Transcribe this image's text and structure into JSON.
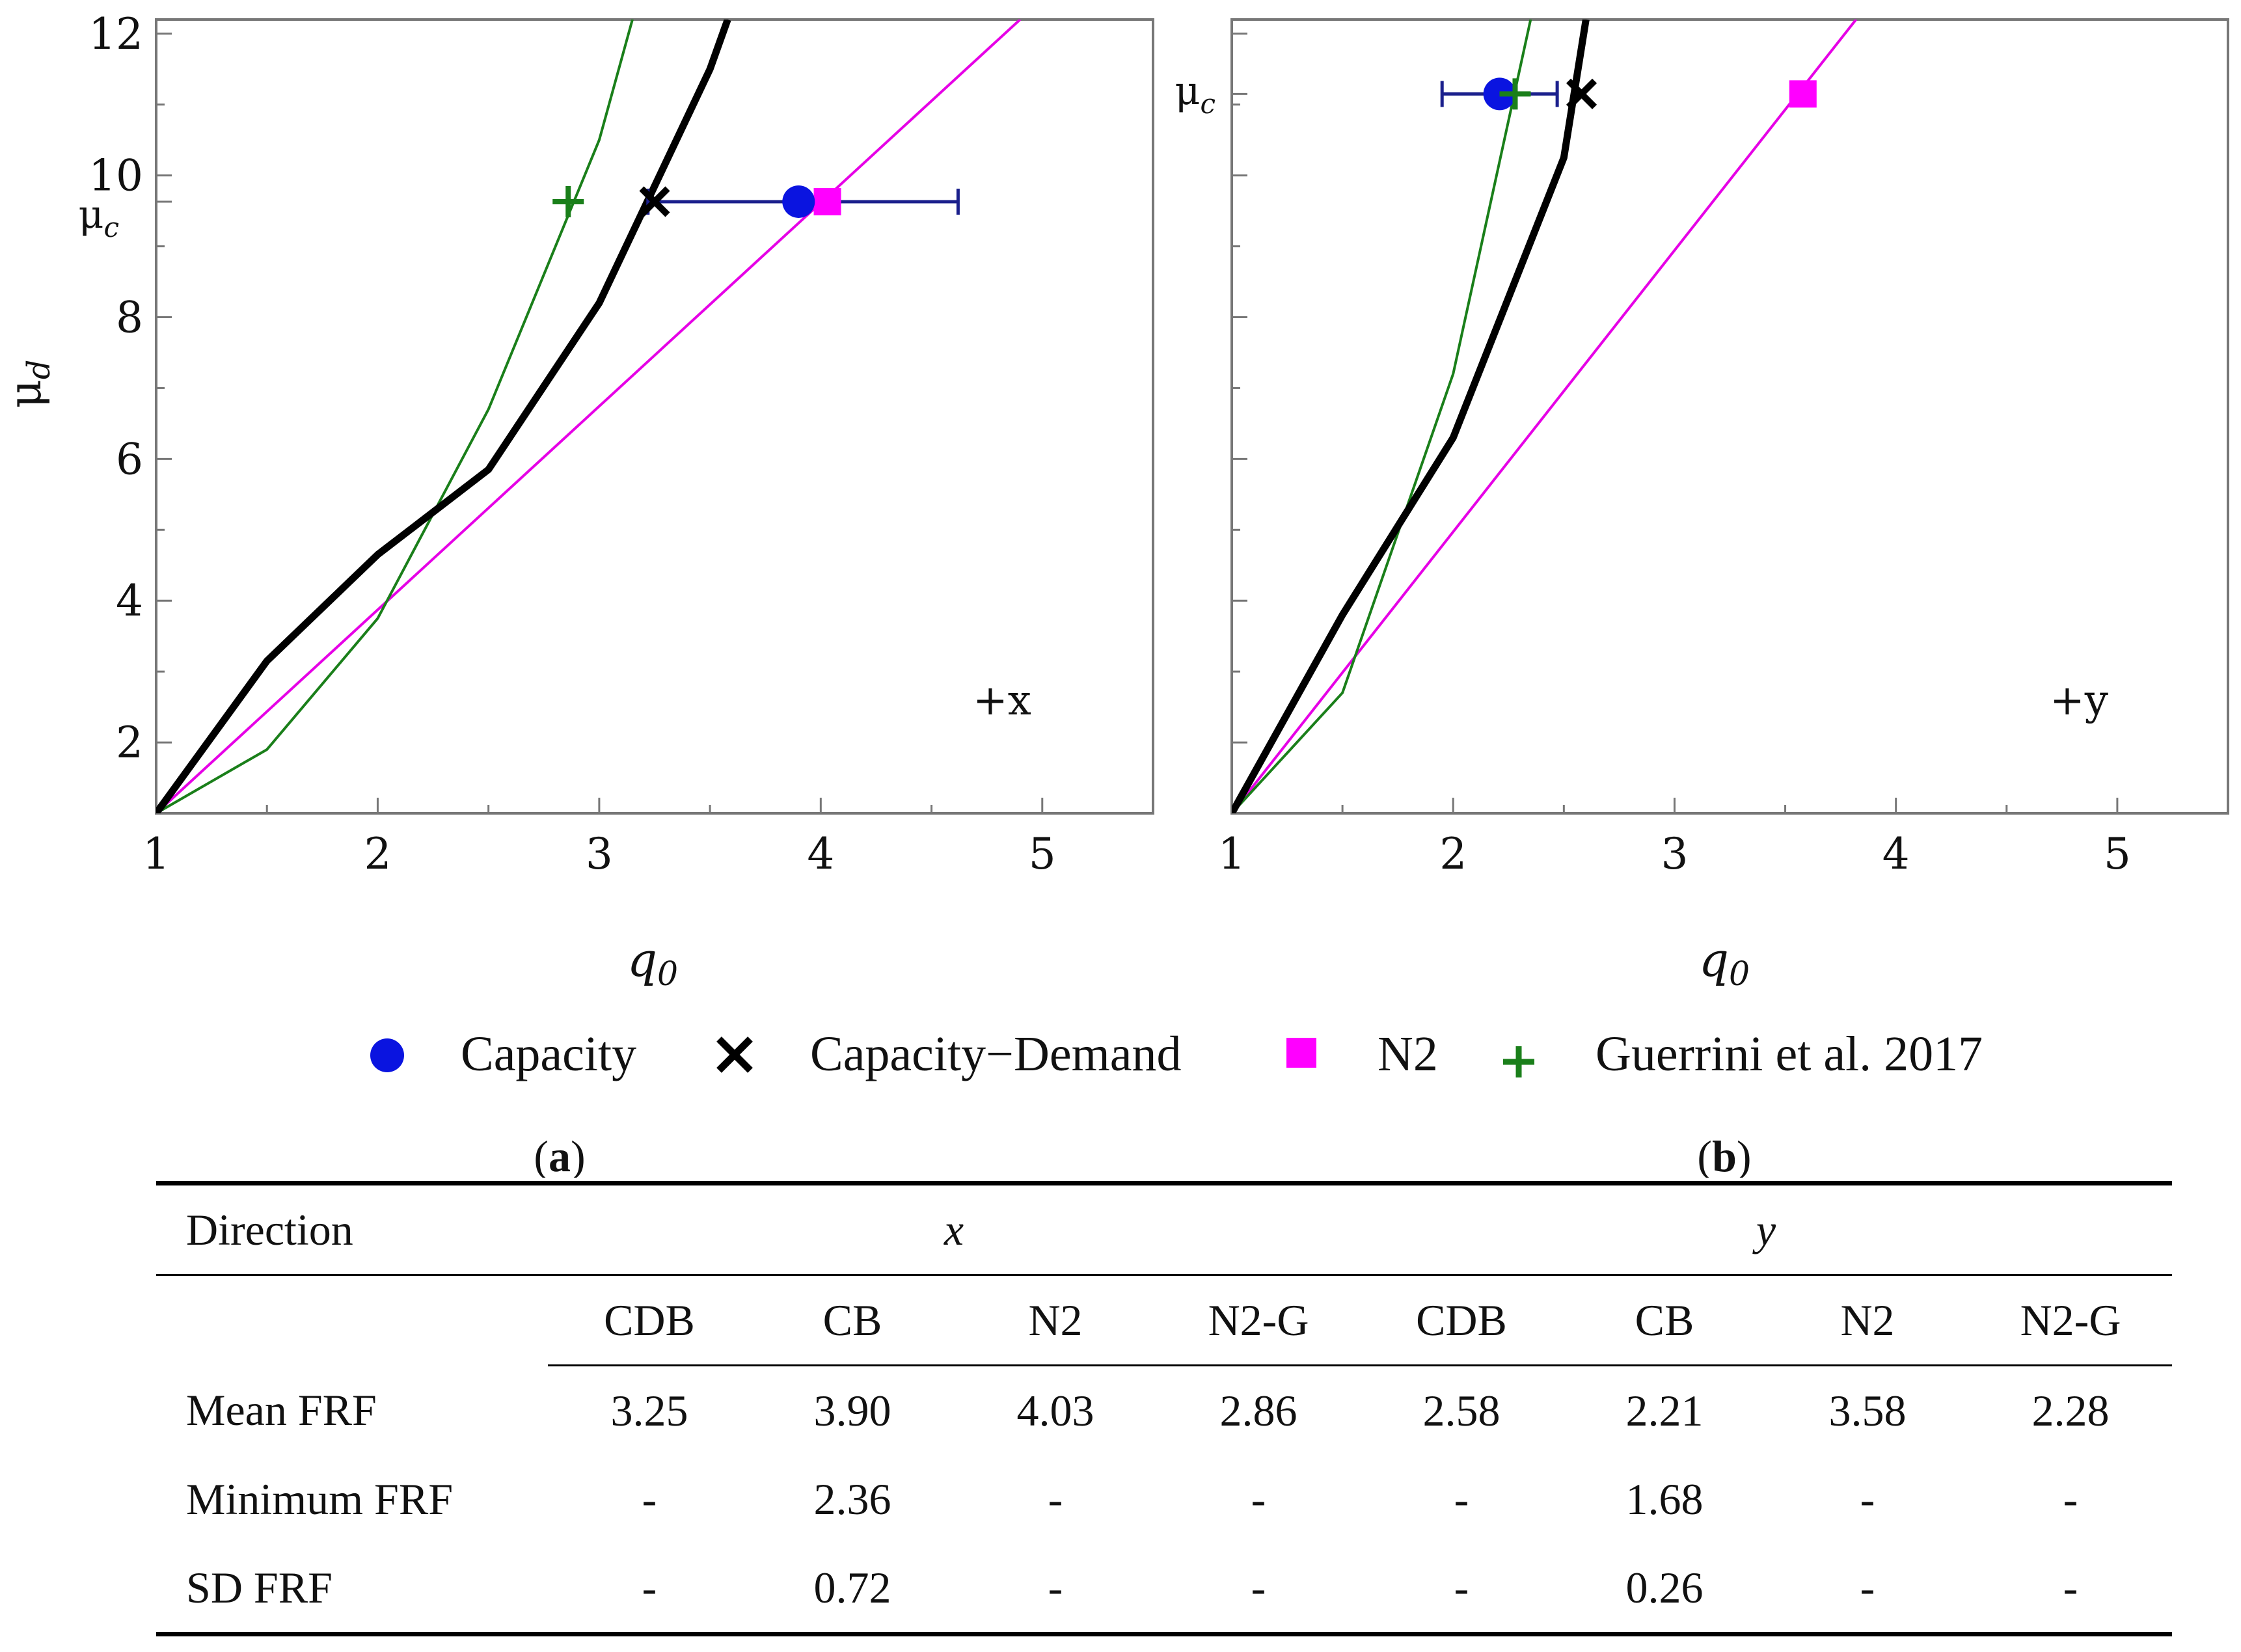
{
  "chart_data": [
    {
      "type": "line",
      "panel_label": "a",
      "annotation": "+x",
      "xlabel": "q0",
      "ylabel": "μd",
      "mu_c_label": "μc",
      "xlim": [
        1,
        5.5
      ],
      "ylim": [
        1,
        12.2
      ],
      "xticks": [
        1,
        2,
        3,
        4,
        5
      ],
      "yticks": [
        2,
        4,
        6,
        8,
        10,
        12
      ],
      "mu_c_value": 9.63,
      "series": [
        {
          "name": "Capacity-Demand",
          "x": [
            1,
            1.5,
            2,
            2.5,
            3,
            3.5,
            3.58
          ],
          "y": [
            1,
            3.15,
            4.65,
            5.85,
            8.2,
            11.5,
            12.2
          ]
        },
        {
          "name": "N2",
          "x": [
            1,
            4.9
          ],
          "y": [
            1,
            12.2
          ]
        },
        {
          "name": "Guerrini et al. 2017",
          "x": [
            1,
            1.5,
            2,
            2.5,
            3,
            3.15
          ],
          "y": [
            1,
            1.9,
            3.75,
            6.7,
            10.5,
            12.2
          ]
        }
      ],
      "points": [
        {
          "name": "Capacity",
          "x": 3.9,
          "y": 9.63,
          "err_min": 3.22,
          "err_max": 4.62
        },
        {
          "name": "Capacity-Demand",
          "x": 3.25,
          "y": 9.63
        },
        {
          "name": "N2",
          "x": 4.03,
          "y": 9.63
        },
        {
          "name": "Guerrini et al. 2017",
          "x": 2.86,
          "y": 9.63
        }
      ]
    },
    {
      "type": "line",
      "panel_label": "b",
      "annotation": "+y",
      "xlabel": "q0",
      "mu_c_label": "μc",
      "xlim": [
        1,
        5.5
      ],
      "ylim": [
        1,
        12.2
      ],
      "xticks": [
        1,
        2,
        3,
        4,
        5
      ],
      "yticks": [
        2,
        4,
        6,
        8,
        10,
        12
      ],
      "mu_c_value": 11.15,
      "series": [
        {
          "name": "Capacity-Demand",
          "x": [
            1,
            1.5,
            2,
            2.5,
            2.6
          ],
          "y": [
            1,
            3.8,
            6.3,
            10.25,
            12.2
          ]
        },
        {
          "name": "N2",
          "x": [
            1,
            3.82
          ],
          "y": [
            1,
            12.2
          ]
        },
        {
          "name": "Guerrini et al. 2017",
          "x": [
            1,
            1.5,
            2,
            2.35
          ],
          "y": [
            1,
            2.7,
            7.2,
            12.2
          ]
        }
      ],
      "points": [
        {
          "name": "Capacity",
          "x": 2.21,
          "y": 11.15,
          "err_min": 1.95,
          "err_max": 2.47
        },
        {
          "name": "Capacity-Demand",
          "x": 2.58,
          "y": 11.15
        },
        {
          "name": "N2",
          "x": 3.58,
          "y": 11.15
        },
        {
          "name": "Guerrini et al. 2017",
          "x": 2.28,
          "y": 11.15
        }
      ]
    }
  ],
  "legend": {
    "items": [
      {
        "label": "Capacity",
        "color": "#0a14e0",
        "marker": "circle"
      },
      {
        "label": "Capacity−Demand",
        "color": "#000000",
        "marker": "x"
      },
      {
        "label": "N2",
        "color": "#ff00ff",
        "marker": "square"
      },
      {
        "label": "Guerrini et al. 2017",
        "color": "#1a7f1a",
        "marker": "plus"
      }
    ]
  },
  "colors": {
    "capacity": "#0a14e0",
    "errorbar": "#1a1f8c",
    "capacity_demand": "#000000",
    "n2": "#e600e6",
    "guerrini": "#1a7f1a",
    "frame": "#777777"
  },
  "table": {
    "direction_label": "Direction",
    "direction_x": "x",
    "direction_y": "y",
    "columns": [
      "CDB",
      "CB",
      "N2",
      "N2-G",
      "CDB",
      "CB",
      "N2",
      "N2-G"
    ],
    "rows": [
      {
        "label": "Mean FRF",
        "values": [
          "3.25",
          "3.90",
          "4.03",
          "2.86",
          "2.58",
          "2.21",
          "3.58",
          "2.28"
        ]
      },
      {
        "label": "Minimum FRF",
        "values": [
          "-",
          "2.36",
          "-",
          "-",
          "-",
          "1.68",
          "-",
          "-"
        ]
      },
      {
        "label": "SD FRF",
        "values": [
          "-",
          "0.72",
          "-",
          "-",
          "-",
          "0.26",
          "-",
          "-"
        ]
      }
    ]
  }
}
